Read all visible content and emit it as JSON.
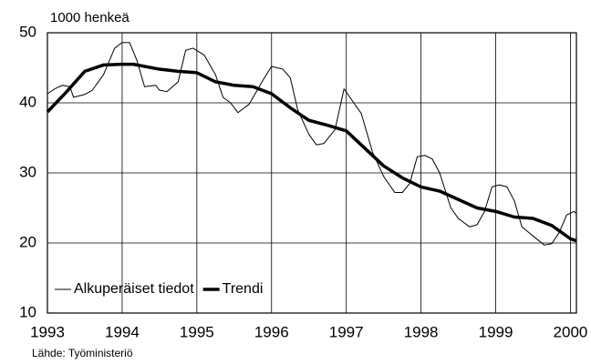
{
  "chart_data": {
    "type": "line",
    "y_label": "1000 henkeä",
    "source": "Lähde: Työministeriö",
    "xlim": [
      1993,
      2000.08
    ],
    "xticks": [
      1993,
      1994,
      1995,
      1996,
      1997,
      1998,
      1999,
      2000
    ],
    "ylim": [
      10,
      50
    ],
    "yticks": [
      10,
      20,
      30,
      40,
      50
    ],
    "grid": true,
    "legend": "lower left",
    "series": [
      {
        "name": "Alkuperäiset tiedot",
        "color": "#000000",
        "width": 1,
        "x": [
          1993.0,
          1993.1,
          1993.2,
          1993.3,
          1993.35,
          1993.5,
          1993.6,
          1993.75,
          1993.9,
          1994.0,
          1994.1,
          1994.2,
          1994.3,
          1994.45,
          1994.5,
          1994.6,
          1994.75,
          1994.85,
          1994.95,
          1995.1,
          1995.25,
          1995.35,
          1995.45,
          1995.55,
          1995.7,
          1995.9,
          1996.0,
          1996.15,
          1996.25,
          1996.35,
          1996.5,
          1996.6,
          1996.7,
          1996.85,
          1996.97,
          1997.1,
          1997.2,
          1997.35,
          1997.5,
          1997.65,
          1997.75,
          1997.85,
          1997.95,
          1998.05,
          1998.15,
          1998.25,
          1998.4,
          1998.5,
          1998.65,
          1998.75,
          1998.85,
          1998.95,
          1999.05,
          1999.15,
          1999.25,
          1999.35,
          1999.5,
          1999.65,
          1999.75,
          1999.85,
          1999.95,
          2000.05,
          2000.08
        ],
        "values": [
          41.3,
          42,
          42.5,
          42.3,
          40.8,
          41.2,
          41.8,
          44,
          47.8,
          48.6,
          48.6,
          46,
          42.3,
          42.5,
          41.8,
          41.6,
          43,
          47.5,
          47.8,
          46.8,
          44,
          40.8,
          40,
          38.6,
          39.8,
          43.5,
          45.2,
          44.8,
          43.6,
          39,
          35.5,
          34,
          34.2,
          36.2,
          42,
          40,
          38.5,
          33,
          29.5,
          27.2,
          27.2,
          28.5,
          32.3,
          32.5,
          32,
          30,
          25,
          23.5,
          22.3,
          22.6,
          24.5,
          28,
          28.3,
          28,
          26,
          22.3,
          21,
          19.7,
          19.9,
          21.5,
          24,
          24.5,
          24.2
        ]
      },
      {
        "name": "Trendi",
        "color": "#000000",
        "width": 3.5,
        "x": [
          1993.0,
          1993.25,
          1993.5,
          1993.75,
          1994.0,
          1994.15,
          1994.5,
          1994.75,
          1995.0,
          1995.25,
          1995.5,
          1995.75,
          1996.0,
          1996.25,
          1996.5,
          1996.75,
          1997.0,
          1997.25,
          1997.5,
          1997.75,
          1998.0,
          1998.25,
          1998.5,
          1998.75,
          1999.0,
          1999.25,
          1999.5,
          1999.75,
          2000.0,
          2000.08
        ],
        "values": [
          38.7,
          41.5,
          44.5,
          45.4,
          45.5,
          45.5,
          44.8,
          44.5,
          44.3,
          43,
          42.5,
          42.3,
          41.3,
          39.3,
          37.5,
          36.8,
          36,
          33.5,
          31,
          29.3,
          28,
          27.4,
          26.2,
          25,
          24.5,
          23.7,
          23.5,
          22.5,
          20.6,
          20.3
        ]
      }
    ]
  }
}
